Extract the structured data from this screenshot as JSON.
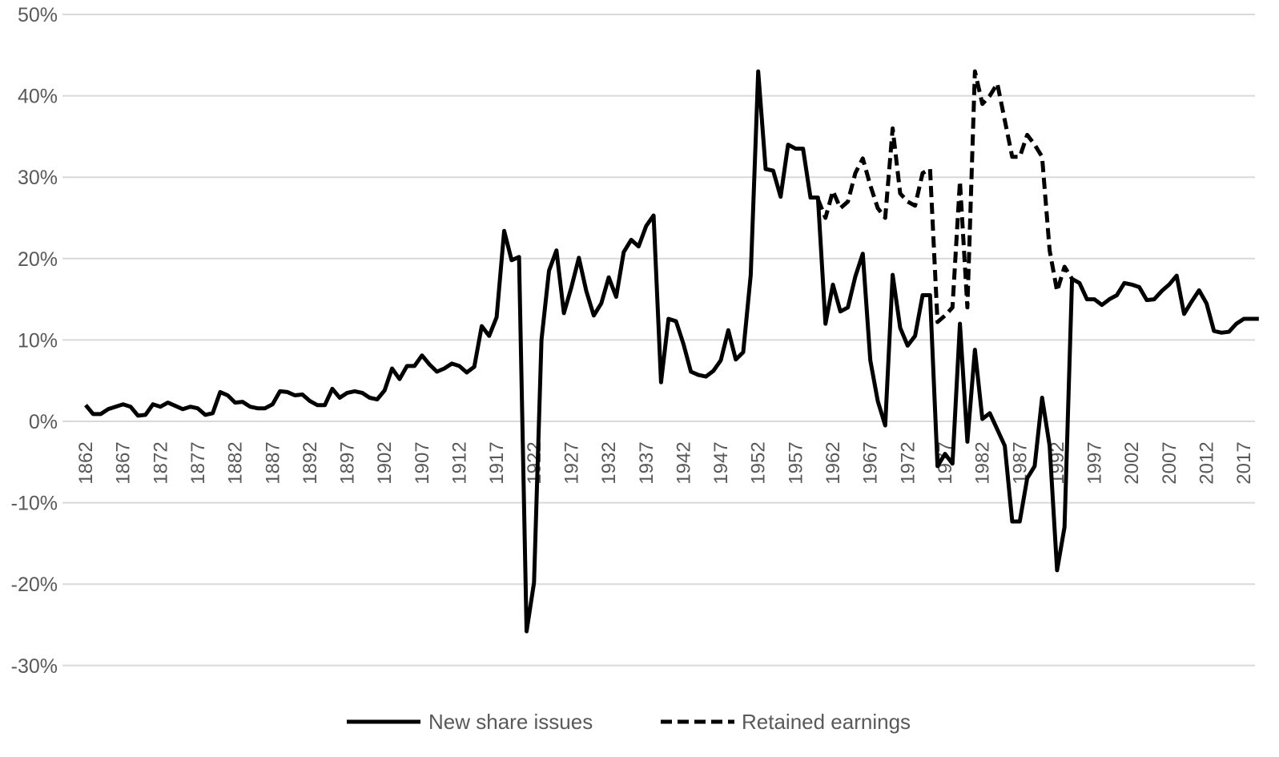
{
  "chart_data": {
    "type": "line",
    "title": "",
    "xlabel": "",
    "ylabel": "",
    "ylim": [
      -30,
      50
    ],
    "y_ticks": [
      -30,
      -20,
      -10,
      0,
      10,
      20,
      30,
      40,
      50
    ],
    "y_tick_labels": [
      "-30%",
      "-20%",
      "-10%",
      "0%",
      "10%",
      "20%",
      "30%",
      "40%",
      "50%"
    ],
    "x_tick_labels": [
      "1862",
      "1867",
      "1872",
      "1877",
      "1882",
      "1887",
      "1892",
      "1897",
      "1902",
      "1907",
      "1912",
      "1917",
      "1922",
      "1927",
      "1932",
      "1937",
      "1942",
      "1947",
      "1952",
      "1957",
      "1962",
      "1967",
      "1972",
      "1977",
      "1982",
      "1987",
      "1992",
      "1997",
      "2002",
      "2007",
      "2012",
      "2017"
    ],
    "xlim": [
      1862,
      2019
    ],
    "grid": true,
    "legend_position": "bottom",
    "colors": {
      "line": "#000000",
      "grid": "#d9d9d9",
      "text": "#595959"
    },
    "series": [
      {
        "name": "New share issues",
        "style": "solid",
        "start_year": 1862,
        "values": [
          2.0,
          0.9,
          0.9,
          1.5,
          1.8,
          2.1,
          1.8,
          0.7,
          0.8,
          2.1,
          1.8,
          2.3,
          1.9,
          1.5,
          1.8,
          1.6,
          0.8,
          1.0,
          3.6,
          3.2,
          2.3,
          2.4,
          1.8,
          1.6,
          1.6,
          2.1,
          3.7,
          3.6,
          3.2,
          3.3,
          2.5,
          2.0,
          2.0,
          4.0,
          2.9,
          3.5,
          3.7,
          3.5,
          2.9,
          2.7,
          3.8,
          6.5,
          5.2,
          6.8,
          6.8,
          8.1,
          7.0,
          6.1,
          6.5,
          7.1,
          6.8,
          6.0,
          6.7,
          11.7,
          10.5,
          12.8,
          23.4,
          19.8,
          20.2,
          -25.8,
          -19.8,
          10.0,
          18.5,
          21.0,
          13.3,
          16.5,
          20.1,
          16.0,
          13.0,
          14.5,
          17.7,
          15.3,
          20.8,
          22.3,
          21.5,
          24.0,
          25.3,
          4.8,
          12.6,
          12.3,
          9.5,
          6.1,
          5.7,
          5.5,
          6.2,
          7.5,
          11.2,
          7.6,
          8.5,
          18.0,
          43.0,
          31.0,
          30.8,
          27.6,
          34.0,
          33.5,
          33.5,
          27.5,
          27.5,
          12.0,
          16.8,
          13.5,
          14.0,
          17.8,
          20.6,
          7.5,
          2.5,
          -0.5,
          18.0,
          11.5,
          9.3,
          10.5,
          15.5,
          15.5,
          -5.5,
          -4.0,
          -5.2,
          12.0,
          -2.5,
          8.8,
          0.3,
          1.0,
          -1.0,
          -3.0,
          -12.3,
          -12.3,
          -7.0,
          -5.5,
          2.9,
          -3.0,
          -18.3,
          -13.0,
          17.5,
          17.0,
          15.0,
          15.0,
          14.3,
          15.0,
          15.5,
          17.0,
          16.8,
          16.5,
          14.9,
          15.0,
          16.0,
          16.8,
          17.9,
          13.2,
          14.7,
          16.1,
          14.5,
          11.1,
          10.9,
          11.0,
          12.0,
          12.6,
          12.6,
          12.6
        ]
      },
      {
        "name": "Retained earnings",
        "style": "dashed",
        "start_year": 1960,
        "values": [
          27.3,
          25.0,
          28.3,
          26.2,
          27.0,
          30.5,
          32.3,
          29.0,
          26.2,
          25.0,
          36.0,
          28.0,
          27.0,
          26.5,
          30.5,
          31.0,
          12.2,
          13.0,
          14.0,
          29.5,
          14.0,
          43.0,
          39.0,
          40.0,
          41.5,
          37.0,
          32.5,
          32.5,
          35.2,
          34.0,
          32.5,
          21.0,
          16.0,
          19.0,
          17.5
        ]
      }
    ]
  }
}
